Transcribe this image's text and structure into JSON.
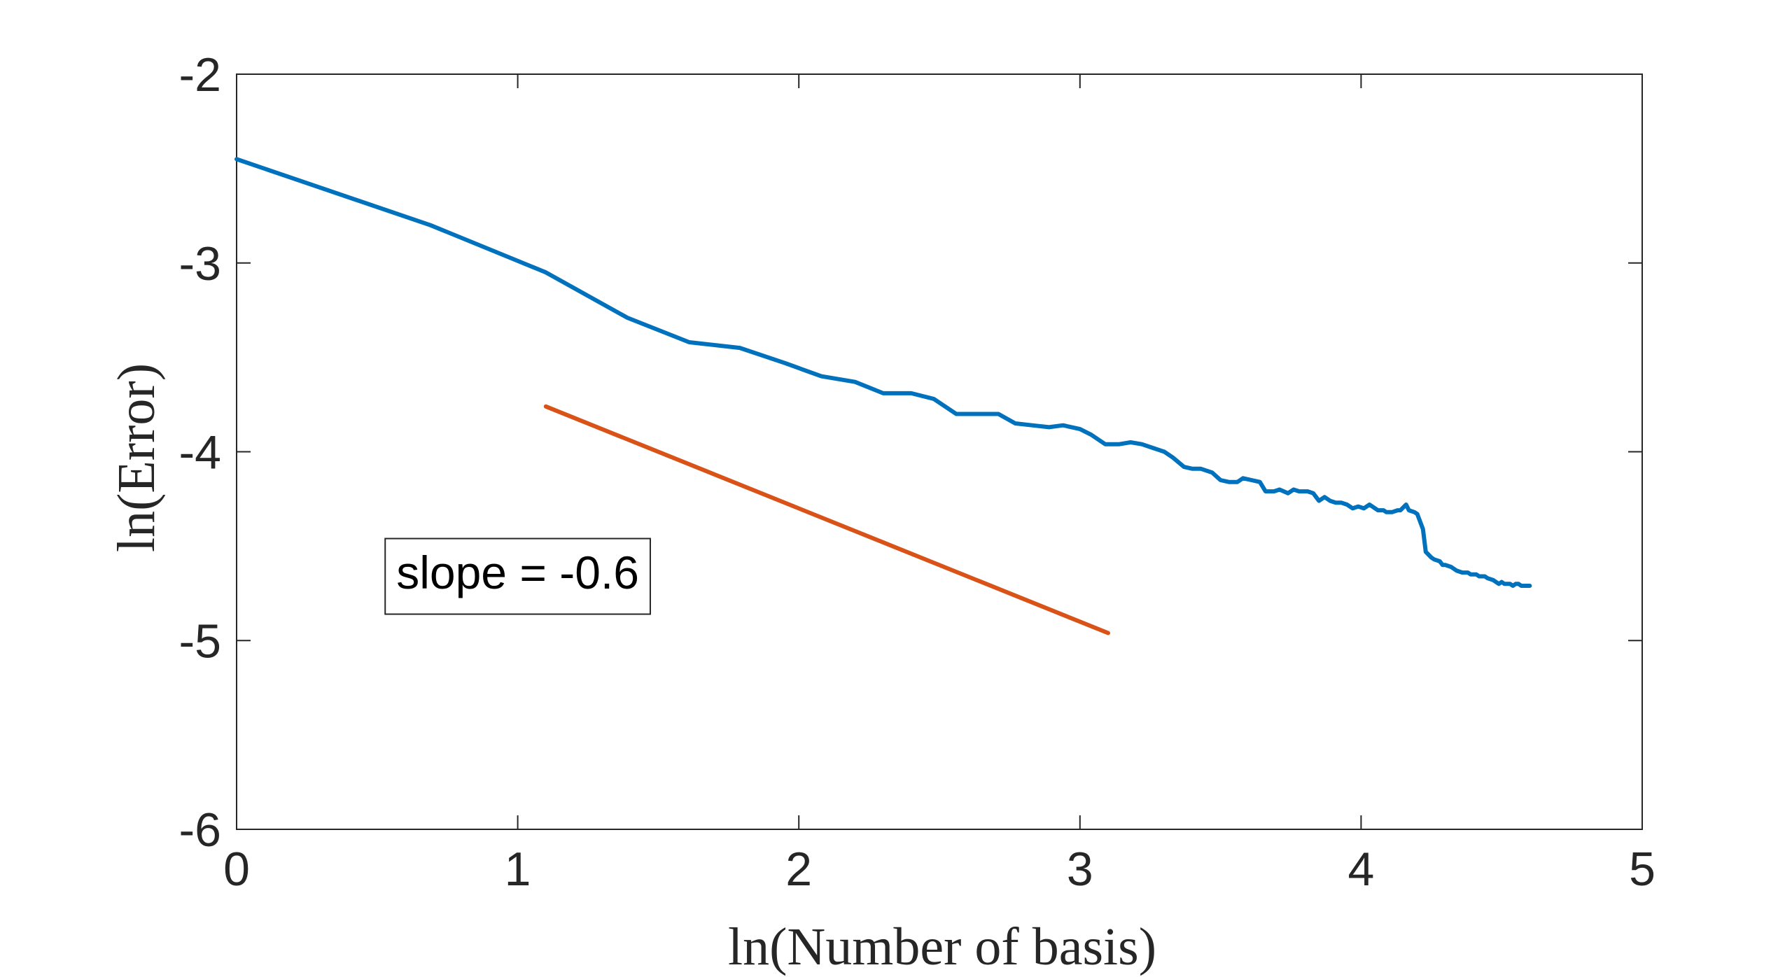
{
  "chart_data": {
    "type": "line",
    "xlabel": "ln(Number of basis)",
    "ylabel": "ln(Error)",
    "xlim": [
      0,
      5
    ],
    "ylim": [
      -6,
      -2
    ],
    "x_ticks": [
      0,
      1,
      2,
      3,
      4,
      5
    ],
    "x_tick_labels": [
      "0",
      "1",
      "2",
      "3",
      "4",
      "5"
    ],
    "y_ticks": [
      -6,
      -5,
      -4,
      -3,
      -2
    ],
    "y_tick_labels": [
      "-6",
      "-5",
      "-4",
      "-3",
      "-2"
    ],
    "grid": false,
    "box": true,
    "series": [
      {
        "color": "#0072BD",
        "x": [
          0,
          0.69,
          1.1,
          1.39,
          1.61,
          1.79,
          1.95,
          2.08,
          2.2,
          2.3,
          2.4,
          2.48,
          2.56,
          2.64,
          2.71,
          2.77,
          2.83,
          2.89,
          2.94,
          3.0,
          3.04,
          3.09,
          3.14,
          3.18,
          3.22,
          3.26,
          3.3,
          3.33,
          3.37,
          3.4,
          3.43,
          3.47,
          3.5,
          3.53,
          3.56,
          3.58,
          3.61,
          3.64,
          3.66,
          3.69,
          3.71,
          3.74,
          3.76,
          3.78,
          3.81,
          3.83,
          3.85,
          3.87,
          3.89,
          3.91,
          3.93,
          3.95,
          3.97,
          3.99,
          4.01,
          4.03,
          4.04,
          4.06,
          4.08,
          4.09,
          4.11,
          4.13,
          4.14,
          4.16,
          4.17,
          4.19,
          4.2,
          4.22,
          4.23,
          4.25,
          4.26,
          4.28,
          4.29,
          4.3,
          4.32,
          4.33,
          4.34,
          4.36,
          4.37,
          4.38,
          4.39,
          4.41,
          4.42,
          4.43,
          4.44,
          4.45,
          4.47,
          4.48,
          4.49,
          4.5,
          4.51,
          4.52,
          4.53,
          4.54,
          4.55,
          4.56,
          4.57,
          4.58,
          4.6
        ],
        "y": [
          -2.45,
          -2.8,
          -3.05,
          -3.29,
          -3.42,
          -3.45,
          -3.53,
          -3.6,
          -3.63,
          -3.69,
          -3.69,
          -3.72,
          -3.8,
          -3.8,
          -3.8,
          -3.85,
          -3.86,
          -3.87,
          -3.86,
          -3.88,
          -3.91,
          -3.96,
          -3.96,
          -3.95,
          -3.96,
          -3.98,
          -4.0,
          -4.03,
          -4.08,
          -4.09,
          -4.09,
          -4.11,
          -4.15,
          -4.16,
          -4.16,
          -4.14,
          -4.15,
          -4.16,
          -4.21,
          -4.21,
          -4.2,
          -4.22,
          -4.2,
          -4.21,
          -4.21,
          -4.22,
          -4.26,
          -4.24,
          -4.26,
          -4.27,
          -4.27,
          -4.28,
          -4.3,
          -4.29,
          -4.3,
          -4.28,
          -4.29,
          -4.31,
          -4.31,
          -4.32,
          -4.32,
          -4.31,
          -4.31,
          -4.28,
          -4.31,
          -4.32,
          -4.33,
          -4.41,
          -4.53,
          -4.56,
          -4.57,
          -4.58,
          -4.6,
          -4.6,
          -4.61,
          -4.62,
          -4.63,
          -4.64,
          -4.64,
          -4.64,
          -4.65,
          -4.65,
          -4.66,
          -4.66,
          -4.66,
          -4.67,
          -4.68,
          -4.69,
          -4.7,
          -4.69,
          -4.7,
          -4.7,
          -4.7,
          -4.71,
          -4.7,
          -4.7,
          -4.71,
          -4.71,
          -4.71
        ]
      },
      {
        "color": "#D95319",
        "x": [
          1.1,
          3.1
        ],
        "y": [
          -3.76,
          -4.96
        ]
      }
    ],
    "annotations": [
      {
        "text": "slope = -0.6",
        "x": 1.0,
        "y": -4.66
      }
    ]
  }
}
